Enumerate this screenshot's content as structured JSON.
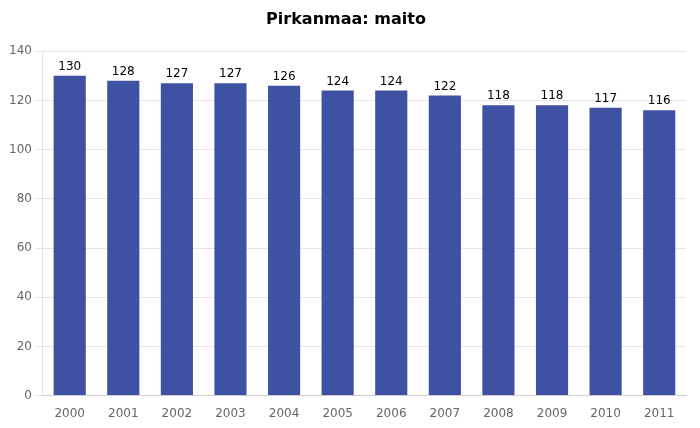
{
  "chart_data": {
    "type": "bar",
    "title": "Pirkanmaa: maito",
    "categories": [
      "2000",
      "2001",
      "2002",
      "2003",
      "2004",
      "2005",
      "2006",
      "2007",
      "2008",
      "2009",
      "2010",
      "2011"
    ],
    "values": [
      130,
      128,
      127,
      127,
      126,
      124,
      124,
      122,
      118,
      118,
      117,
      116
    ],
    "color": "#3F51A3",
    "ylim": [
      0,
      140
    ],
    "yticks": [
      0,
      20,
      40,
      60,
      80,
      100,
      120,
      140
    ],
    "grid": true,
    "data_labels": true
  }
}
